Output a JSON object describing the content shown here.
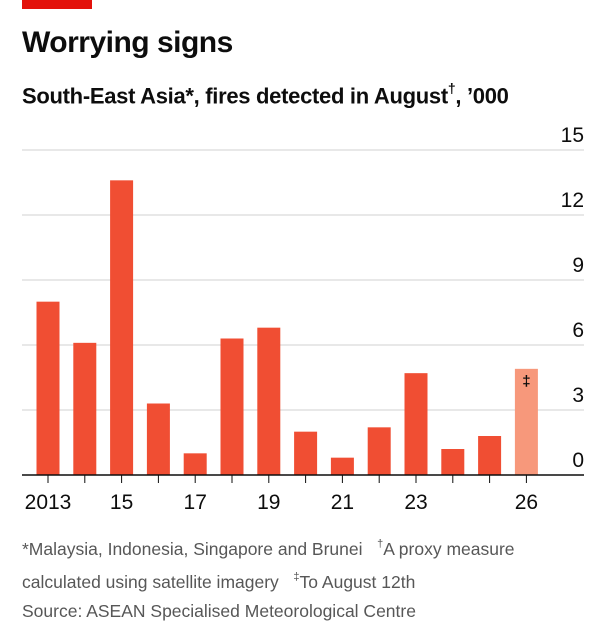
{
  "header": {
    "title": "Worrying signs",
    "subtitle_main": "South-East Asia*, fires detected in August",
    "subtitle_mark": "†",
    "subtitle_unit": ", ’000"
  },
  "footnotes": {
    "note1": "*Malaysia, Indonesia, Singapore and Brunei",
    "note2_mark": "†",
    "note2_a": "A proxy measure",
    "note2_b": "calculated using satellite imagery",
    "note3_mark": "‡",
    "note3": "To August 12th",
    "source": "Source: ASEAN Specialised Meteorological Centre"
  },
  "colors": {
    "accent": "#e3120b",
    "bar": "#f04e33",
    "bar_partial": "#f7987b",
    "grid": "#d0d0d0",
    "axis": "#0d0d0d"
  },
  "chart_data": {
    "type": "bar",
    "title": "Worrying signs",
    "subtitle": "South-East Asia*, fires detected in August†, ’000",
    "categories": [
      "2013",
      "2014",
      "2015",
      "2016",
      "2017",
      "2018",
      "2019",
      "2020",
      "2021",
      "2022",
      "2023",
      "2024",
      "2025",
      "2026"
    ],
    "x_tick_labels": [
      {
        "category": "2013",
        "label": "2013"
      },
      {
        "category": "2015",
        "label": "15"
      },
      {
        "category": "2017",
        "label": "17"
      },
      {
        "category": "2019",
        "label": "19"
      },
      {
        "category": "2021",
        "label": "21"
      },
      {
        "category": "2023",
        "label": "23"
      },
      {
        "category": "2026",
        "label": "26"
      }
    ],
    "values": [
      8.0,
      6.1,
      13.6,
      3.3,
      1.0,
      6.3,
      6.8,
      2.0,
      0.8,
      2.2,
      4.7,
      1.2,
      1.8,
      4.9
    ],
    "partial_category": "2026",
    "partial_mark": "‡",
    "ylim": [
      0,
      15
    ],
    "y_ticks": [
      0,
      3,
      6,
      9,
      12,
      15
    ],
    "y_axis_position": "right",
    "grid": true
  }
}
